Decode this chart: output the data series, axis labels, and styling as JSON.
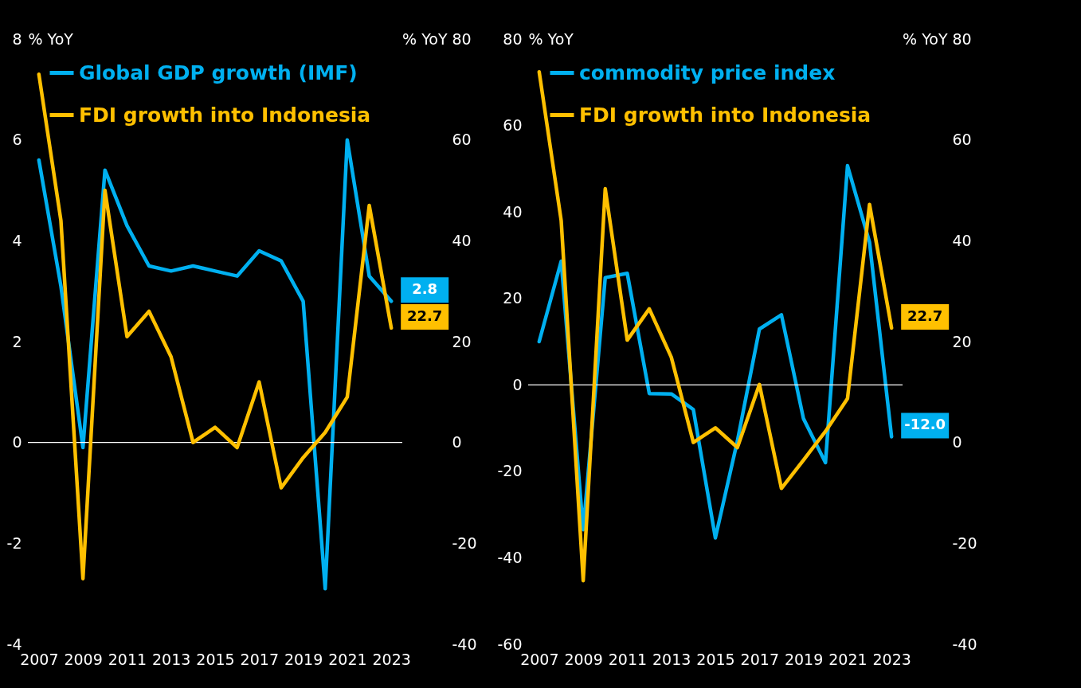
{
  "chart_data": [
    {
      "type": "line",
      "x": [
        2007,
        2008,
        2009,
        2010,
        2011,
        2012,
        2013,
        2014,
        2015,
        2016,
        2017,
        2018,
        2019,
        2020,
        2021,
        2022,
        2023
      ],
      "xlim": [
        2006.5,
        2023.5
      ],
      "xticks": [
        2007,
        2009,
        2011,
        2013,
        2015,
        2017,
        2019,
        2021,
        2023
      ],
      "ylim": [
        -4,
        8
      ],
      "yticks": [
        -4,
        -2,
        0,
        2,
        4,
        6,
        8
      ],
      "y2lim": [
        -40,
        80
      ],
      "y2ticks": [
        -40,
        -20,
        0,
        20,
        40,
        60,
        80
      ],
      "ylabel": "% YoY",
      "y2label": "% YoY",
      "legend": "top left",
      "grid": false,
      "series": [
        {
          "name": "Global GDP growth (IMF)",
          "color": "#00b0f0",
          "axis": "y",
          "values": [
            5.6,
            3.1,
            -0.1,
            5.4,
            4.3,
            3.5,
            3.4,
            3.5,
            3.4,
            3.3,
            3.8,
            3.6,
            2.8,
            -2.9,
            6.0,
            3.3,
            2.8
          ],
          "value_labels": [
            null,
            null,
            null,
            null,
            null,
            null,
            null,
            null,
            null,
            null,
            null,
            null,
            null,
            null,
            null,
            null,
            "2.8"
          ]
        },
        {
          "name": "FDI growth into Indonesia",
          "color": "#ffc000",
          "axis": "y2",
          "values": [
            73,
            44,
            -27,
            50,
            21,
            26,
            17,
            0,
            3,
            -1,
            12,
            -9,
            -3,
            2,
            9,
            47,
            22.7
          ],
          "value_labels": [
            null,
            null,
            null,
            null,
            null,
            null,
            null,
            null,
            null,
            null,
            null,
            null,
            null,
            null,
            null,
            null,
            "22.7"
          ]
        }
      ],
      "ref_lines": [
        {
          "axis": "y",
          "value": 0,
          "color": "#ffffff"
        }
      ]
    },
    {
      "type": "line",
      "x": [
        2007,
        2008,
        2009,
        2010,
        2011,
        2012,
        2013,
        2014,
        2015,
        2016,
        2017,
        2018,
        2019,
        2020,
        2021,
        2022,
        2023
      ],
      "xlim": [
        2006.5,
        2023.5
      ],
      "xticks": [
        2007,
        2009,
        2011,
        2013,
        2015,
        2017,
        2019,
        2021,
        2023
      ],
      "ylim": [
        -60,
        80
      ],
      "yticks": [
        -60,
        -40,
        -20,
        0,
        20,
        40,
        60,
        80
      ],
      "y2lim": [
        -40,
        80
      ],
      "y2ticks": [
        -40,
        -20,
        0,
        20,
        40,
        60,
        80
      ],
      "ylabel": "% YoY",
      "y2label": "% YoY",
      "legend": "top left",
      "grid": false,
      "series": [
        {
          "name": "commodity price index",
          "color": "#00b0f0",
          "axis": "y",
          "values": [
            10,
            28.6,
            -33.5,
            24.8,
            25.8,
            -2,
            -2.1,
            -5.7,
            -35.4,
            -13,
            12.9,
            16.2,
            -7.8,
            -18,
            50.7,
            33,
            -12.0
          ],
          "value_labels": [
            null,
            null,
            null,
            null,
            null,
            null,
            null,
            null,
            null,
            null,
            null,
            null,
            null,
            null,
            null,
            null,
            "-12.0"
          ]
        },
        {
          "name": "FDI growth into Indonesia",
          "color": "#ffc000",
          "axis": "y2",
          "values": [
            73.5,
            44,
            -27.4,
            50.3,
            20.3,
            26.5,
            16.9,
            0,
            2.9,
            -1,
            11.5,
            -9.1,
            -3.5,
            2.2,
            8.7,
            47.2,
            22.7
          ],
          "value_labels": [
            null,
            null,
            null,
            null,
            null,
            null,
            null,
            null,
            null,
            null,
            null,
            null,
            null,
            null,
            null,
            null,
            "22.7"
          ]
        }
      ],
      "ref_lines": [
        {
          "axis": "y",
          "value": 0,
          "color": "#ffffff"
        }
      ]
    }
  ]
}
